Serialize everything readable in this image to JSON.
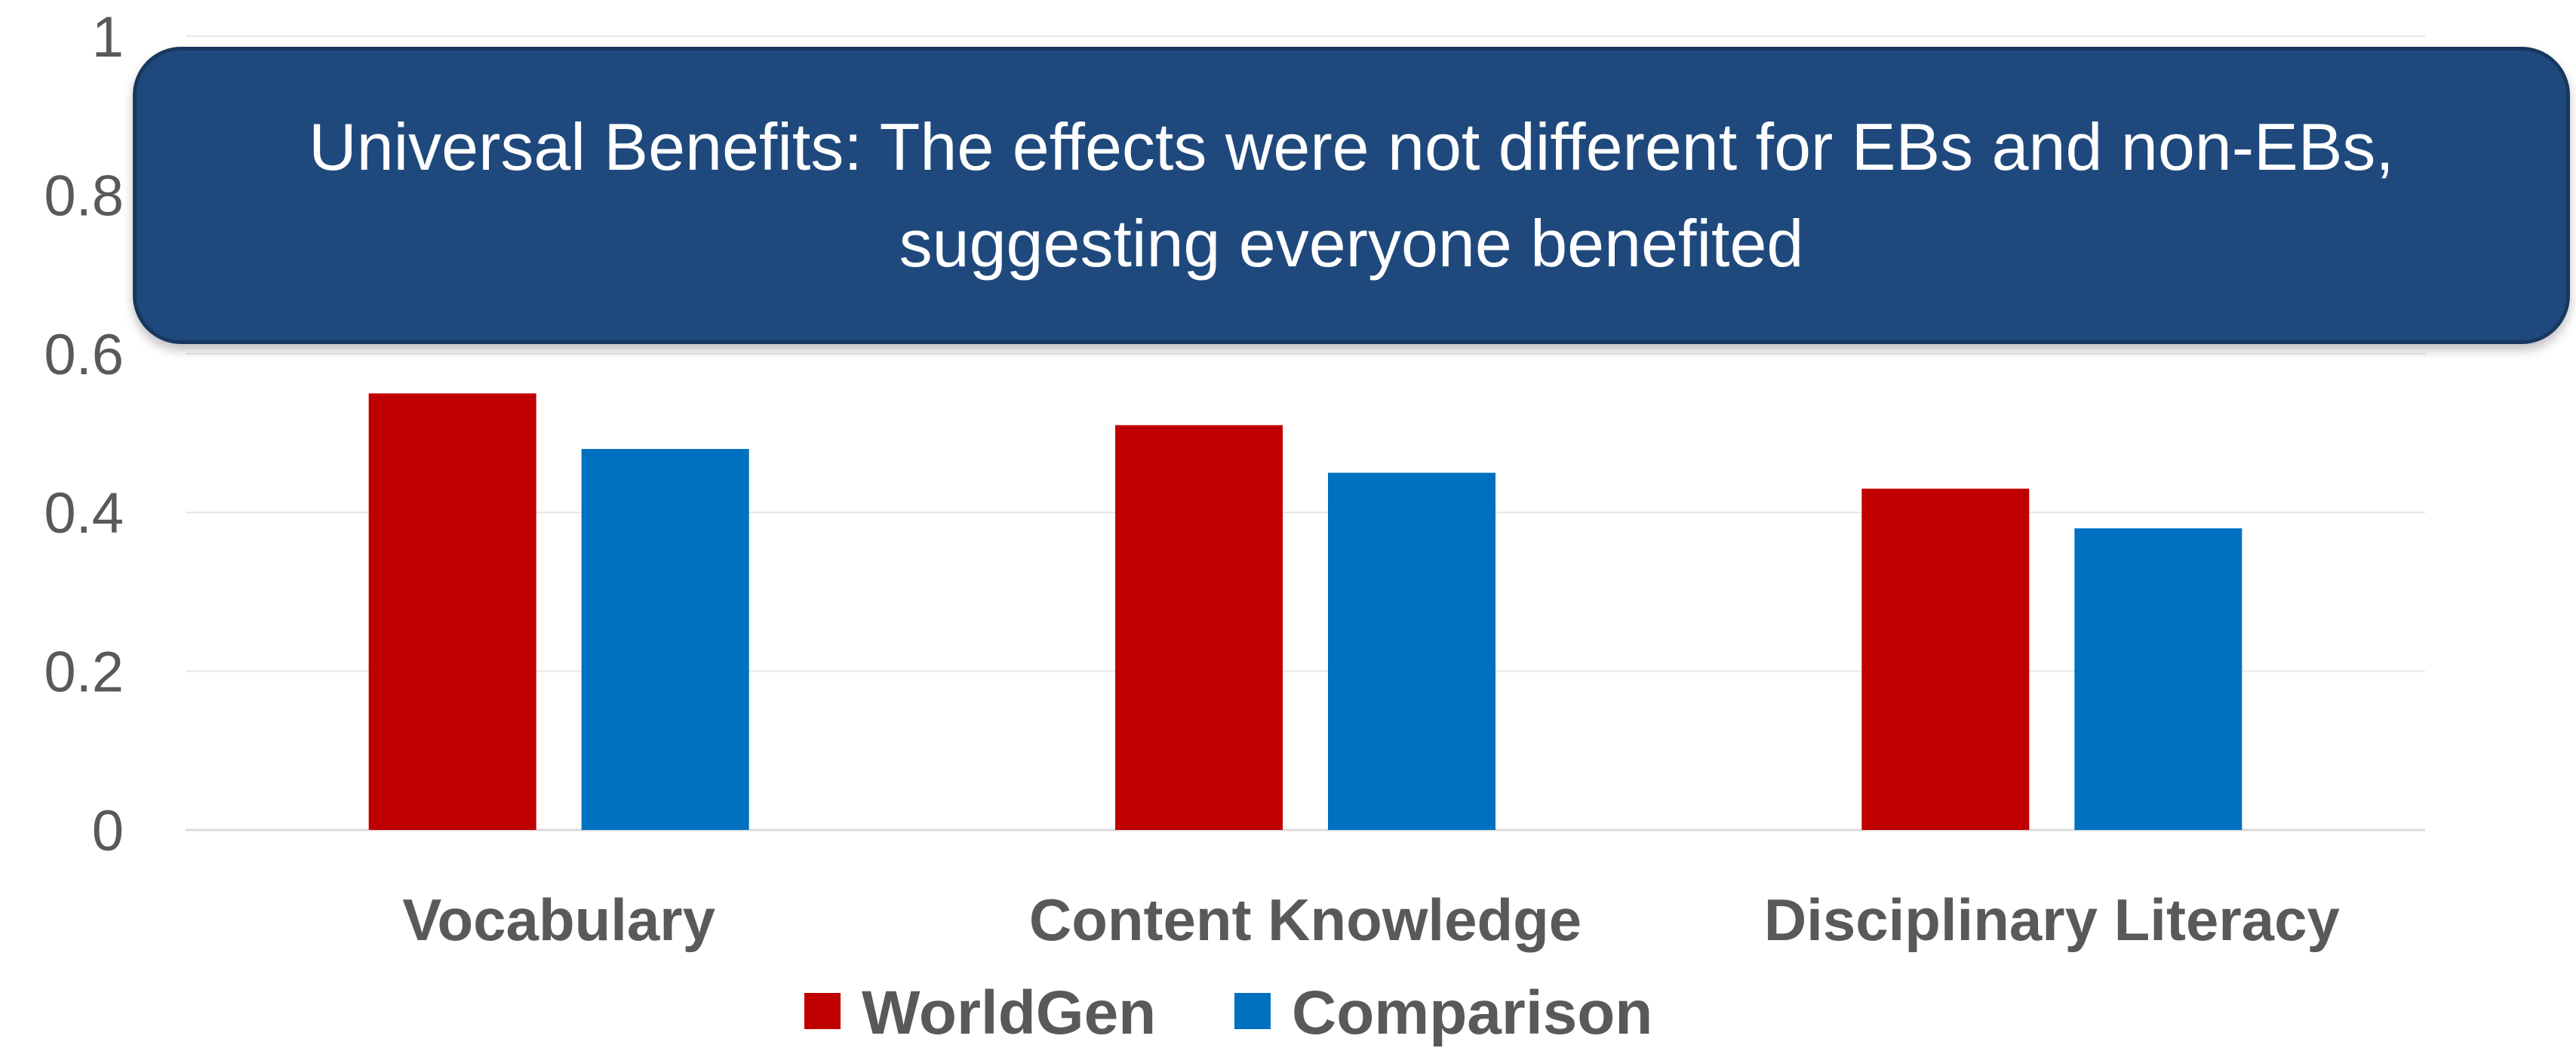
{
  "callout": {
    "text": "Universal Benefits: The effects were not different for EBs and non-EBs, suggesting everyone benefited",
    "background_color": "#1f497d",
    "border_color": "#17375e"
  },
  "chart_data": {
    "type": "bar",
    "title": "",
    "xlabel": "",
    "ylabel": "",
    "categories": [
      "Vocabulary",
      "Content Knowledge",
      "Disciplinary Literacy"
    ],
    "series": [
      {
        "name": "WorldGen",
        "values": [
          0.55,
          0.51,
          0.43
        ],
        "color": "#c00000"
      },
      {
        "name": "Comparison",
        "values": [
          0.48,
          0.45,
          0.38
        ],
        "color": "#0070c0"
      }
    ],
    "ylim": [
      0,
      1
    ],
    "yticks": [
      "0",
      "0.2",
      "0.4",
      "0.6",
      "0.8",
      "1"
    ],
    "grid": true,
    "legend_position": "bottom"
  }
}
